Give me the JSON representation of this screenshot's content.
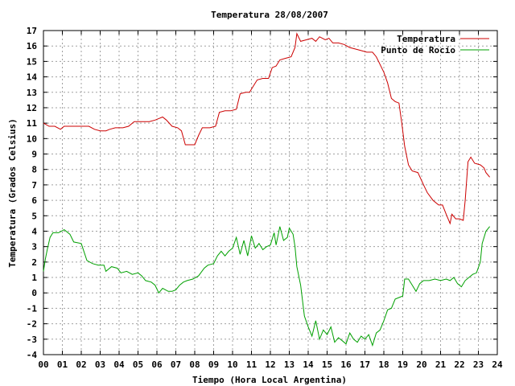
{
  "chart_data": {
    "type": "line",
    "title": "Temperatura 28/08/2007",
    "xlabel": "Tiempo (Hora Local Argentina)",
    "ylabel": "Temperatura (Grados Celsius)",
    "xlim": [
      0,
      24
    ],
    "ylim": [
      -4,
      17
    ],
    "x_ticks": [
      "00",
      "01",
      "02",
      "03",
      "04",
      "05",
      "06",
      "07",
      "08",
      "09",
      "10",
      "11",
      "12",
      "13",
      "14",
      "15",
      "16",
      "17",
      "18",
      "19",
      "20",
      "21",
      "22",
      "23",
      "24"
    ],
    "y_ticks": [
      "17",
      "16",
      "15",
      "14",
      "13",
      "12",
      "11",
      "10",
      "9",
      "8",
      "7",
      "6",
      "5",
      "4",
      "3",
      "2",
      "1",
      "0",
      "-1",
      "-2",
      "-3",
      "-4"
    ],
    "grid": true,
    "legend_position": "top-right",
    "series": [
      {
        "name": "Temperatura",
        "color": "#cc0000",
        "points": [
          [
            0.0,
            11.0
          ],
          [
            0.3,
            10.8
          ],
          [
            0.6,
            10.8
          ],
          [
            0.9,
            10.6
          ],
          [
            1.1,
            10.8
          ],
          [
            1.5,
            10.8
          ],
          [
            2.0,
            10.8
          ],
          [
            2.4,
            10.8
          ],
          [
            2.7,
            10.6
          ],
          [
            3.0,
            10.5
          ],
          [
            3.3,
            10.5
          ],
          [
            3.5,
            10.6
          ],
          [
            3.8,
            10.7
          ],
          [
            4.2,
            10.7
          ],
          [
            4.5,
            10.8
          ],
          [
            4.8,
            11.1
          ],
          [
            5.2,
            11.1
          ],
          [
            5.6,
            11.1
          ],
          [
            5.9,
            11.2
          ],
          [
            6.1,
            11.3
          ],
          [
            6.3,
            11.4
          ],
          [
            6.5,
            11.2
          ],
          [
            6.8,
            10.8
          ],
          [
            7.1,
            10.7
          ],
          [
            7.3,
            10.5
          ],
          [
            7.5,
            9.6
          ],
          [
            7.8,
            9.6
          ],
          [
            8.0,
            9.6
          ],
          [
            8.2,
            10.2
          ],
          [
            8.4,
            10.7
          ],
          [
            8.8,
            10.7
          ],
          [
            9.1,
            10.8
          ],
          [
            9.3,
            11.7
          ],
          [
            9.6,
            11.8
          ],
          [
            9.9,
            11.8
          ],
          [
            10.2,
            11.9
          ],
          [
            10.4,
            12.9
          ],
          [
            10.7,
            13.0
          ],
          [
            10.9,
            13.0
          ],
          [
            11.1,
            13.4
          ],
          [
            11.3,
            13.8
          ],
          [
            11.6,
            13.9
          ],
          [
            11.9,
            13.9
          ],
          [
            12.1,
            14.6
          ],
          [
            12.3,
            14.7
          ],
          [
            12.5,
            15.1
          ],
          [
            12.8,
            15.2
          ],
          [
            13.1,
            15.3
          ],
          [
            13.3,
            15.9
          ],
          [
            13.4,
            16.8
          ],
          [
            13.6,
            16.3
          ],
          [
            13.9,
            16.4
          ],
          [
            14.2,
            16.5
          ],
          [
            14.4,
            16.3
          ],
          [
            14.6,
            16.6
          ],
          [
            14.9,
            16.4
          ],
          [
            15.1,
            16.5
          ],
          [
            15.3,
            16.2
          ],
          [
            15.6,
            16.2
          ],
          [
            15.9,
            16.1
          ],
          [
            16.2,
            15.9
          ],
          [
            16.5,
            15.8
          ],
          [
            16.8,
            15.7
          ],
          [
            17.1,
            15.6
          ],
          [
            17.4,
            15.6
          ],
          [
            17.6,
            15.3
          ],
          [
            17.8,
            14.8
          ],
          [
            18.0,
            14.3
          ],
          [
            18.2,
            13.6
          ],
          [
            18.4,
            12.6
          ],
          [
            18.6,
            12.4
          ],
          [
            18.8,
            12.3
          ],
          [
            18.95,
            11.0
          ],
          [
            19.1,
            9.5
          ],
          [
            19.3,
            8.3
          ],
          [
            19.5,
            7.9
          ],
          [
            19.8,
            7.8
          ],
          [
            20.1,
            7.0
          ],
          [
            20.3,
            6.5
          ],
          [
            20.6,
            6.0
          ],
          [
            20.9,
            5.7
          ],
          [
            21.1,
            5.7
          ],
          [
            21.3,
            5.1
          ],
          [
            21.5,
            4.5
          ],
          [
            21.6,
            5.1
          ],
          [
            21.8,
            4.8
          ],
          [
            22.0,
            4.8
          ],
          [
            22.2,
            4.7
          ],
          [
            22.3,
            6.0
          ],
          [
            22.45,
            8.5
          ],
          [
            22.6,
            8.8
          ],
          [
            22.8,
            8.4
          ],
          [
            23.1,
            8.3
          ],
          [
            23.3,
            8.1
          ],
          [
            23.4,
            7.8
          ],
          [
            23.6,
            7.5
          ]
        ]
      },
      {
        "name": "Punto de Rocío",
        "color": "#00a000",
        "points": [
          [
            0.0,
            1.4
          ],
          [
            0.1,
            2.2
          ],
          [
            0.2,
            2.8
          ],
          [
            0.35,
            3.6
          ],
          [
            0.5,
            3.9
          ],
          [
            0.8,
            3.9
          ],
          [
            1.1,
            4.1
          ],
          [
            1.4,
            3.8
          ],
          [
            1.6,
            3.3
          ],
          [
            2.0,
            3.2
          ],
          [
            2.3,
            2.1
          ],
          [
            2.6,
            1.9
          ],
          [
            2.9,
            1.8
          ],
          [
            3.2,
            1.8
          ],
          [
            3.3,
            1.4
          ],
          [
            3.6,
            1.7
          ],
          [
            3.9,
            1.6
          ],
          [
            4.1,
            1.3
          ],
          [
            4.4,
            1.4
          ],
          [
            4.7,
            1.2
          ],
          [
            5.0,
            1.3
          ],
          [
            5.2,
            1.1
          ],
          [
            5.4,
            0.8
          ],
          [
            5.7,
            0.7
          ],
          [
            5.9,
            0.5
          ],
          [
            6.1,
            0.0
          ],
          [
            6.3,
            0.3
          ],
          [
            6.6,
            0.1
          ],
          [
            6.8,
            0.1
          ],
          [
            7.0,
            0.2
          ],
          [
            7.2,
            0.5
          ],
          [
            7.4,
            0.7
          ],
          [
            7.6,
            0.8
          ],
          [
            7.9,
            0.9
          ],
          [
            8.2,
            1.1
          ],
          [
            8.5,
            1.6
          ],
          [
            8.7,
            1.8
          ],
          [
            9.0,
            1.9
          ],
          [
            9.2,
            2.4
          ],
          [
            9.4,
            2.7
          ],
          [
            9.6,
            2.4
          ],
          [
            9.8,
            2.7
          ],
          [
            10.0,
            2.9
          ],
          [
            10.2,
            3.6
          ],
          [
            10.4,
            2.5
          ],
          [
            10.6,
            3.4
          ],
          [
            10.8,
            2.4
          ],
          [
            11.0,
            3.7
          ],
          [
            11.2,
            2.9
          ],
          [
            11.4,
            3.2
          ],
          [
            11.6,
            2.8
          ],
          [
            11.8,
            3.0
          ],
          [
            12.0,
            3.1
          ],
          [
            12.2,
            3.9
          ],
          [
            12.3,
            3.1
          ],
          [
            12.5,
            4.3
          ],
          [
            12.7,
            3.4
          ],
          [
            12.9,
            3.6
          ],
          [
            13.0,
            4.2
          ],
          [
            13.2,
            3.8
          ],
          [
            13.3,
            3.0
          ],
          [
            13.4,
            1.7
          ],
          [
            13.6,
            0.5
          ],
          [
            13.8,
            -1.5
          ],
          [
            14.0,
            -2.2
          ],
          [
            14.2,
            -2.8
          ],
          [
            14.4,
            -1.8
          ],
          [
            14.6,
            -3.0
          ],
          [
            14.8,
            -2.4
          ],
          [
            15.0,
            -2.7
          ],
          [
            15.2,
            -2.2
          ],
          [
            15.4,
            -3.2
          ],
          [
            15.6,
            -2.9
          ],
          [
            15.8,
            -3.1
          ],
          [
            16.0,
            -3.3
          ],
          [
            16.2,
            -2.6
          ],
          [
            16.4,
            -3.0
          ],
          [
            16.6,
            -3.2
          ],
          [
            16.8,
            -2.8
          ],
          [
            17.0,
            -3.0
          ],
          [
            17.2,
            -2.7
          ],
          [
            17.4,
            -3.4
          ],
          [
            17.6,
            -2.6
          ],
          [
            17.8,
            -2.4
          ],
          [
            18.0,
            -1.8
          ],
          [
            18.2,
            -1.1
          ],
          [
            18.4,
            -1.0
          ],
          [
            18.6,
            -0.4
          ],
          [
            18.8,
            -0.3
          ],
          [
            19.0,
            -0.2
          ],
          [
            19.1,
            0.9
          ],
          [
            19.3,
            0.9
          ],
          [
            19.5,
            0.5
          ],
          [
            19.7,
            0.1
          ],
          [
            19.9,
            0.6
          ],
          [
            20.1,
            0.8
          ],
          [
            20.4,
            0.8
          ],
          [
            20.7,
            0.9
          ],
          [
            21.0,
            0.8
          ],
          [
            21.3,
            0.9
          ],
          [
            21.5,
            0.8
          ],
          [
            21.7,
            1.0
          ],
          [
            21.9,
            0.6
          ],
          [
            22.1,
            0.4
          ],
          [
            22.3,
            0.8
          ],
          [
            22.5,
            1.0
          ],
          [
            22.7,
            1.2
          ],
          [
            22.9,
            1.3
          ],
          [
            23.1,
            2.0
          ],
          [
            23.2,
            3.2
          ],
          [
            23.4,
            4.0
          ],
          [
            23.6,
            4.3
          ]
        ]
      }
    ]
  }
}
